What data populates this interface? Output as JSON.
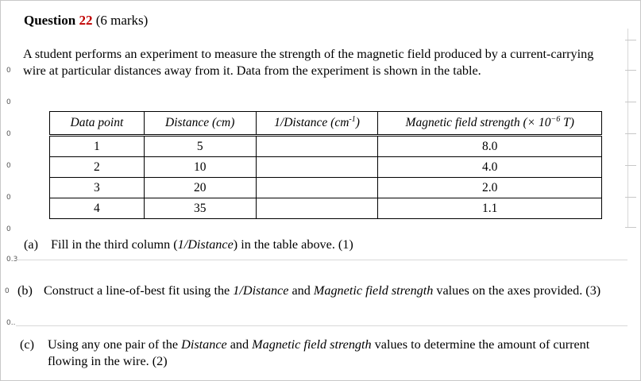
{
  "question": {
    "label": "Question",
    "number": "22",
    "marks": "(6 marks)"
  },
  "intro": {
    "before_i": "A student performs an experiment to measure the strength of the magnetic field produced by a current-carrying wire at particular distances away from it. Data from the experiment is shown in the table."
  },
  "table": {
    "headers": {
      "data_point": "Data point",
      "distance": "Distance (cm)",
      "inverse_prefix": "1/Distance (cm",
      "inverse_sup": "-1",
      "inverse_suffix": ")",
      "field_prefix": "Magnetic field strength (× 10",
      "field_sup": "−6",
      "field_suffix": " T)"
    },
    "rows": [
      {
        "point": "1",
        "distance": "5",
        "inverse": "",
        "field": "8.0"
      },
      {
        "point": "2",
        "distance": "10",
        "inverse": "",
        "field": "4.0"
      },
      {
        "point": "3",
        "distance": "20",
        "inverse": "",
        "field": "2.0"
      },
      {
        "point": "4",
        "distance": "35",
        "inverse": "",
        "field": "1.1"
      }
    ]
  },
  "parts": {
    "a": {
      "label": "(a)",
      "t1": "Fill in the third column (",
      "t2": "1/Distance",
      "t3": ") in the table above. (1)"
    },
    "b": {
      "label": "(b)",
      "t1": "Construct a line-of-best fit using the ",
      "t2": "1/Distance",
      "t3": " and ",
      "t4": "Magnetic field strength",
      "t5": " values on the axes provided. (3)"
    },
    "c": {
      "label": "(c)",
      "t1": "Using any one pair of the ",
      "t2": "Distance",
      "t3": " and ",
      "t4": "Magnetic field strength",
      "t5": " values to determine the amount of current flowing in the wire. (2)"
    }
  },
  "margin_tags": [
    "0",
    "0",
    "0",
    "0",
    "0",
    "0",
    "0.3",
    "0",
    "0.."
  ]
}
